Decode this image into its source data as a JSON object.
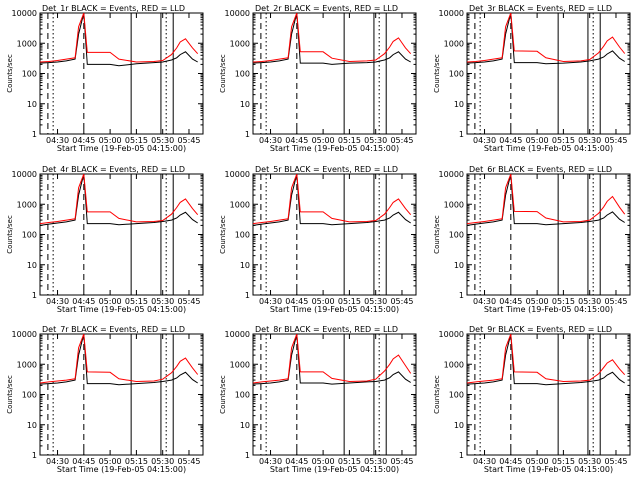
{
  "chart_data": [
    {
      "type": "line",
      "title": "Det_1r BLACK = Events, RED = LLD",
      "xlabel": "Start Time (19-Feb-05 04:15:00)",
      "ylabel": "Counts/sec",
      "yscale": "log",
      "ylim": [
        1,
        10000
      ],
      "yticks": [
        "1",
        "10",
        "100",
        "1000",
        "10000"
      ],
      "xticks": [
        "04:30",
        "04:45",
        "05:00",
        "05:15",
        "05:30",
        "05:45"
      ],
      "grid": false,
      "legend": "in title",
      "x": [
        "04:20",
        "04:25",
        "04:30",
        "04:35",
        "04:40",
        "04:42",
        "04:45",
        "04:47",
        "05:00",
        "05:05",
        "05:15",
        "05:25",
        "05:30",
        "05:35",
        "05:38",
        "05:40",
        "05:43",
        "05:47",
        "05:50"
      ],
      "series": [
        {
          "name": "Events",
          "color": "#000000",
          "values": [
            220,
            230,
            240,
            260,
            300,
            2000,
            10000,
            200,
            200,
            180,
            210,
            230,
            240,
            280,
            330,
            420,
            520,
            300,
            240
          ]
        },
        {
          "name": "LLD",
          "color": "#ff0000",
          "values": [
            240,
            250,
            270,
            300,
            330,
            3500,
            10000,
            500,
            500,
            300,
            240,
            250,
            270,
            420,
            700,
            1100,
            1400,
            700,
            450
          ]
        }
      ]
    },
    {
      "type": "line",
      "title": "Det_2r BLACK = Events, RED = LLD",
      "xlabel": "Start Time (19-Feb-05 04:15:00)",
      "ylabel": "Counts/sec",
      "yscale": "log",
      "ylim": [
        1,
        10000
      ],
      "yticks": [
        "1",
        "10",
        "100",
        "1000",
        "10000"
      ],
      "xticks": [
        "04:30",
        "04:45",
        "05:00",
        "05:15",
        "05:30",
        "05:45"
      ],
      "grid": false,
      "legend": "in title",
      "x": [
        "04:20",
        "04:25",
        "04:30",
        "04:35",
        "04:40",
        "04:42",
        "04:45",
        "04:47",
        "05:00",
        "05:05",
        "05:15",
        "05:25",
        "05:30",
        "05:35",
        "05:38",
        "05:40",
        "05:43",
        "05:47",
        "05:50"
      ],
      "series": [
        {
          "name": "Events",
          "color": "#000000",
          "values": [
            220,
            230,
            240,
            260,
            300,
            2000,
            10000,
            220,
            220,
            200,
            220,
            230,
            240,
            280,
            330,
            420,
            520,
            300,
            240
          ]
        },
        {
          "name": "LLD",
          "color": "#ff0000",
          "values": [
            240,
            250,
            270,
            300,
            330,
            3500,
            10000,
            520,
            520,
            320,
            250,
            260,
            280,
            450,
            750,
            1150,
            1500,
            700,
            450
          ]
        }
      ]
    },
    {
      "type": "line",
      "title": "Det_3r BLACK = Events, RED = LLD",
      "xlabel": "Start Time (19-Feb-05 04:15:00)",
      "ylabel": "Counts/sec",
      "yscale": "log",
      "ylim": [
        1,
        10000
      ],
      "yticks": [
        "1",
        "10",
        "100",
        "1000",
        "10000"
      ],
      "xticks": [
        "04:30",
        "04:45",
        "05:00",
        "05:15",
        "05:30",
        "05:45"
      ],
      "grid": false,
      "legend": "in title",
      "x": [
        "04:20",
        "04:25",
        "04:30",
        "04:35",
        "04:40",
        "04:42",
        "04:45",
        "04:47",
        "05:00",
        "05:05",
        "05:15",
        "05:25",
        "05:30",
        "05:35",
        "05:38",
        "05:40",
        "05:43",
        "05:47",
        "05:50"
      ],
      "series": [
        {
          "name": "Events",
          "color": "#000000",
          "values": [
            220,
            230,
            240,
            260,
            300,
            2000,
            10000,
            230,
            230,
            210,
            220,
            240,
            260,
            300,
            350,
            440,
            560,
            320,
            250
          ]
        },
        {
          "name": "LLD",
          "color": "#ff0000",
          "values": [
            240,
            250,
            270,
            300,
            330,
            3500,
            10000,
            560,
            540,
            330,
            250,
            260,
            290,
            480,
            800,
            1200,
            1600,
            750,
            460
          ]
        }
      ]
    },
    {
      "type": "line",
      "title": "Det_4r BLACK = Events, RED = LLD",
      "xlabel": "Start Time (19-Feb-05 04:15:00)",
      "ylabel": "Counts/sec",
      "yscale": "log",
      "ylim": [
        1,
        10000
      ],
      "yticks": [
        "1",
        "10",
        "100",
        "1000",
        "10000"
      ],
      "xticks": [
        "04:30",
        "04:45",
        "05:00",
        "05:15",
        "05:30",
        "05:45"
      ],
      "grid": false,
      "legend": "in title",
      "x": [
        "04:20",
        "04:25",
        "04:30",
        "04:35",
        "04:40",
        "04:42",
        "04:45",
        "04:47",
        "05:00",
        "05:05",
        "05:15",
        "05:25",
        "05:30",
        "05:35",
        "05:38",
        "05:40",
        "05:43",
        "05:47",
        "05:50"
      ],
      "series": [
        {
          "name": "Events",
          "color": "#000000",
          "values": [
            200,
            220,
            240,
            260,
            300,
            2000,
            10000,
            230,
            230,
            210,
            230,
            250,
            270,
            300,
            350,
            440,
            540,
            310,
            240
          ]
        },
        {
          "name": "LLD",
          "color": "#ff0000",
          "values": [
            230,
            250,
            270,
            300,
            330,
            3500,
            10000,
            560,
            560,
            340,
            260,
            270,
            290,
            470,
            780,
            1150,
            1500,
            720,
            450
          ]
        }
      ]
    },
    {
      "type": "line",
      "title": "Det_5r BLACK = Events, RED = LLD",
      "xlabel": "Start Time (19-Feb-05 04:15:00)",
      "ylabel": "Counts/sec",
      "yscale": "log",
      "ylim": [
        1,
        10000
      ],
      "yticks": [
        "1",
        "10",
        "100",
        "1000",
        "10000"
      ],
      "xticks": [
        "04:30",
        "04:45",
        "05:00",
        "05:15",
        "05:30",
        "05:45"
      ],
      "grid": false,
      "legend": "in title",
      "x": [
        "04:20",
        "04:25",
        "04:30",
        "04:35",
        "04:40",
        "04:42",
        "04:45",
        "04:47",
        "05:00",
        "05:05",
        "05:15",
        "05:25",
        "05:30",
        "05:35",
        "05:38",
        "05:40",
        "05:43",
        "05:47",
        "05:50"
      ],
      "series": [
        {
          "name": "Events",
          "color": "#000000",
          "values": [
            200,
            220,
            240,
            260,
            300,
            2000,
            10000,
            230,
            230,
            210,
            230,
            250,
            270,
            300,
            350,
            440,
            540,
            310,
            240
          ]
        },
        {
          "name": "LLD",
          "color": "#ff0000",
          "values": [
            230,
            250,
            270,
            300,
            330,
            3500,
            10000,
            560,
            560,
            340,
            260,
            270,
            290,
            470,
            780,
            1150,
            1500,
            720,
            450
          ]
        }
      ]
    },
    {
      "type": "line",
      "title": "Det_6r BLACK = Events, RED = LLD",
      "xlabel": "Start Time (19-Feb-05 04:15:00)",
      "ylabel": "Counts/sec",
      "yscale": "log",
      "ylim": [
        1,
        10000
      ],
      "yticks": [
        "1",
        "10",
        "100",
        "1000",
        "10000"
      ],
      "xticks": [
        "04:30",
        "04:45",
        "05:00",
        "05:15",
        "05:30",
        "05:45"
      ],
      "grid": false,
      "legend": "in title",
      "x": [
        "04:20",
        "04:25",
        "04:30",
        "04:35",
        "04:40",
        "04:42",
        "04:45",
        "04:47",
        "05:00",
        "05:05",
        "05:15",
        "05:25",
        "05:30",
        "05:35",
        "05:38",
        "05:40",
        "05:43",
        "05:47",
        "05:50"
      ],
      "series": [
        {
          "name": "Events",
          "color": "#000000",
          "values": [
            200,
            220,
            240,
            260,
            300,
            2000,
            10000,
            230,
            230,
            210,
            230,
            250,
            270,
            300,
            350,
            440,
            560,
            320,
            250
          ]
        },
        {
          "name": "LLD",
          "color": "#ff0000",
          "values": [
            230,
            250,
            270,
            300,
            330,
            3500,
            10000,
            580,
            570,
            350,
            260,
            270,
            300,
            500,
            820,
            1250,
            1800,
            800,
            470
          ]
        }
      ]
    },
    {
      "type": "line",
      "title": "Det_7r BLACK = Events, RED = LLD",
      "xlabel": "Start Time (19-Feb-05 04:15:00)",
      "ylabel": "Counts/sec",
      "yscale": "log",
      "ylim": [
        1,
        10000
      ],
      "yticks": [
        "1",
        "10",
        "100",
        "1000",
        "10000"
      ],
      "xticks": [
        "04:30",
        "04:45",
        "05:00",
        "05:15",
        "05:30",
        "05:45"
      ],
      "grid": false,
      "legend": "in title",
      "x": [
        "04:20",
        "04:25",
        "04:30",
        "04:35",
        "04:40",
        "04:42",
        "04:45",
        "04:47",
        "05:00",
        "05:05",
        "05:15",
        "05:25",
        "05:30",
        "05:35",
        "05:38",
        "05:40",
        "05:43",
        "05:47",
        "05:50"
      ],
      "series": [
        {
          "name": "Events",
          "color": "#000000",
          "values": [
            220,
            230,
            240,
            260,
            300,
            2000,
            10000,
            230,
            230,
            210,
            230,
            250,
            270,
            300,
            350,
            440,
            540,
            310,
            240
          ]
        },
        {
          "name": "LLD",
          "color": "#ff0000",
          "values": [
            240,
            260,
            280,
            300,
            330,
            3500,
            10000,
            560,
            540,
            330,
            270,
            280,
            320,
            520,
            850,
            1250,
            1600,
            760,
            460
          ]
        }
      ]
    },
    {
      "type": "line",
      "title": "Det_8r BLACK = Events, RED = LLD",
      "xlabel": "Start Time (19-Feb-05 04:15:00)",
      "ylabel": "Counts/sec",
      "yscale": "log",
      "ylim": [
        1,
        10000
      ],
      "yticks": [
        "1",
        "10",
        "100",
        "1000",
        "10000"
      ],
      "xticks": [
        "04:30",
        "04:45",
        "05:00",
        "05:15",
        "05:30",
        "05:45"
      ],
      "grid": false,
      "legend": "in title",
      "x": [
        "04:20",
        "04:25",
        "04:30",
        "04:35",
        "04:40",
        "04:42",
        "04:45",
        "04:47",
        "05:00",
        "05:05",
        "05:15",
        "05:25",
        "05:30",
        "05:35",
        "05:38",
        "05:40",
        "05:43",
        "05:47",
        "05:50"
      ],
      "series": [
        {
          "name": "Events",
          "color": "#000000",
          "values": [
            220,
            230,
            240,
            260,
            300,
            2000,
            10000,
            240,
            240,
            220,
            240,
            260,
            270,
            300,
            360,
            460,
            560,
            320,
            250
          ]
        },
        {
          "name": "LLD",
          "color": "#ff0000",
          "values": [
            240,
            260,
            280,
            300,
            330,
            3500,
            10000,
            560,
            560,
            340,
            270,
            280,
            320,
            600,
            1000,
            1500,
            2000,
            900,
            500
          ]
        }
      ]
    },
    {
      "type": "line",
      "title": "Det_9r BLACK = Events, RED = LLD",
      "xlabel": "Start Time (19-Feb-05 04:15:00)",
      "ylabel": "Counts/sec",
      "yscale": "log",
      "ylim": [
        1,
        10000
      ],
      "yticks": [
        "1",
        "10",
        "100",
        "1000",
        "10000"
      ],
      "xticks": [
        "04:30",
        "04:45",
        "05:00",
        "05:15",
        "05:30",
        "05:45"
      ],
      "grid": false,
      "legend": "in title",
      "x": [
        "04:20",
        "04:25",
        "04:30",
        "04:35",
        "04:40",
        "04:42",
        "04:45",
        "04:47",
        "05:00",
        "05:05",
        "05:15",
        "05:25",
        "05:30",
        "05:35",
        "05:38",
        "05:40",
        "05:43",
        "05:47",
        "05:50"
      ],
      "series": [
        {
          "name": "Events",
          "color": "#000000",
          "values": [
            220,
            230,
            240,
            260,
            300,
            2000,
            10000,
            230,
            230,
            210,
            230,
            250,
            270,
            300,
            350,
            440,
            540,
            310,
            240
          ]
        },
        {
          "name": "LLD",
          "color": "#ff0000",
          "values": [
            240,
            260,
            280,
            300,
            330,
            3500,
            10000,
            560,
            540,
            330,
            270,
            280,
            300,
            480,
            780,
            1100,
            1400,
            700,
            450
          ]
        }
      ]
    }
  ]
}
